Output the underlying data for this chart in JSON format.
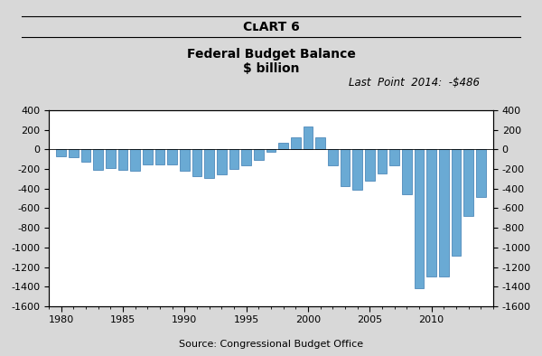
{
  "title_main": "Federal Budget Balance",
  "title_sub": "$ billion",
  "annotation": "Last  Point  2014:  -$486",
  "source": "Source: Congressional Budget Office",
  "bar_color": "#6aaad4",
  "bar_edge_color": "#3a7ab0",
  "years": [
    1980,
    1981,
    1982,
    1983,
    1984,
    1985,
    1986,
    1987,
    1988,
    1989,
    1990,
    1991,
    1992,
    1993,
    1994,
    1995,
    1996,
    1997,
    1998,
    1999,
    2000,
    2001,
    2002,
    2003,
    2004,
    2005,
    2006,
    2007,
    2008,
    2009,
    2010,
    2011,
    2012,
    2013,
    2014
  ],
  "values": [
    -74,
    -79,
    -128,
    -208,
    -185,
    -212,
    -221,
    -150,
    -155,
    -152,
    -221,
    -269,
    -290,
    -255,
    -203,
    -164,
    -107,
    -22,
    69,
    126,
    236,
    128,
    -158,
    -378,
    -413,
    -318,
    -248,
    -161,
    -459,
    -1413,
    -1294,
    -1300,
    -1087,
    -680,
    -486
  ],
  "ylim": [
    -1600,
    400
  ],
  "yticks": [
    -1600,
    -1400,
    -1200,
    -1000,
    -800,
    -600,
    -400,
    -200,
    0,
    200,
    400
  ],
  "xlim": [
    1979.0,
    2015.0
  ],
  "xticks": [
    1980,
    1985,
    1990,
    1995,
    2000,
    2005,
    2010
  ],
  "background_color": "#ffffff",
  "fig_background": "#d8d8d8"
}
